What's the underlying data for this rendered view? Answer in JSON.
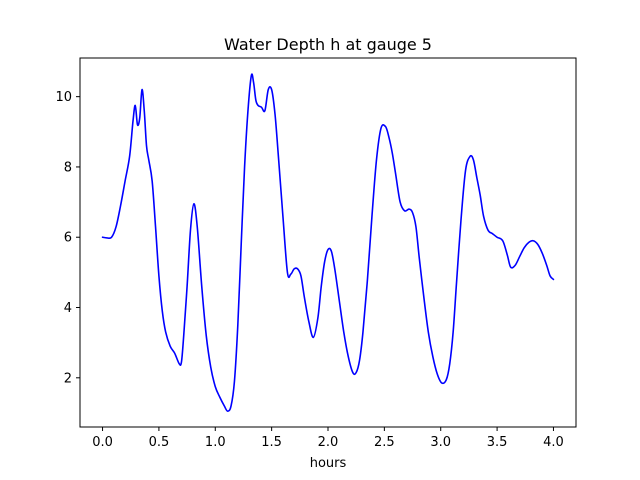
{
  "chart_data": {
    "type": "line",
    "title": "Water Depth h at gauge 5",
    "xlabel": "hours",
    "ylabel": "",
    "xlim": [
      -0.2,
      4.2
    ],
    "ylim": [
      0.6,
      11.1
    ],
    "xticks": [
      0.0,
      0.5,
      1.0,
      1.5,
      2.0,
      2.5,
      3.0,
      3.5,
      4.0
    ],
    "xtick_labels": [
      "0.0",
      "0.5",
      "1.0",
      "1.5",
      "2.0",
      "2.5",
      "3.0",
      "3.5",
      "4.0"
    ],
    "yticks": [
      2,
      4,
      6,
      8,
      10
    ],
    "ytick_labels": [
      "2",
      "4",
      "6",
      "8",
      "10"
    ],
    "grid": false,
    "series": [
      {
        "color": "#0000ff",
        "x": [
          0.0,
          0.04,
          0.08,
          0.12,
          0.16,
          0.2,
          0.24,
          0.27,
          0.29,
          0.31,
          0.33,
          0.35,
          0.37,
          0.39,
          0.41,
          0.44,
          0.47,
          0.5,
          0.53,
          0.56,
          0.6,
          0.64,
          0.68,
          0.7,
          0.72,
          0.75,
          0.78,
          0.81,
          0.84,
          0.88,
          0.92,
          0.96,
          1.0,
          1.04,
          1.08,
          1.11,
          1.14,
          1.17,
          1.2,
          1.23,
          1.26,
          1.29,
          1.32,
          1.34,
          1.36,
          1.38,
          1.41,
          1.44,
          1.47,
          1.5,
          1.53,
          1.56,
          1.6,
          1.64,
          1.67,
          1.7,
          1.73,
          1.76,
          1.79,
          1.83,
          1.87,
          1.91,
          1.94,
          1.97,
          2.0,
          2.03,
          2.06,
          2.1,
          2.14,
          2.18,
          2.22,
          2.25,
          2.28,
          2.31,
          2.35,
          2.39,
          2.43,
          2.47,
          2.51,
          2.54,
          2.57,
          2.6,
          2.64,
          2.68,
          2.72,
          2.75,
          2.78,
          2.81,
          2.85,
          2.89,
          2.93,
          2.97,
          3.01,
          3.05,
          3.08,
          3.11,
          3.14,
          3.18,
          3.22,
          3.26,
          3.29,
          3.32,
          3.35,
          3.38,
          3.42,
          3.46,
          3.5,
          3.55,
          3.59,
          3.62,
          3.66,
          3.7,
          3.74,
          3.78,
          3.82,
          3.86,
          3.9,
          3.94,
          3.97,
          4.0
        ],
        "y": [
          6.0,
          5.98,
          6.0,
          6.3,
          6.9,
          7.6,
          8.3,
          9.3,
          9.75,
          9.2,
          9.4,
          10.2,
          9.6,
          8.6,
          8.2,
          7.6,
          6.3,
          4.9,
          3.9,
          3.3,
          2.9,
          2.7,
          2.4,
          2.45,
          3.2,
          4.6,
          6.2,
          6.95,
          6.3,
          4.6,
          3.2,
          2.3,
          1.75,
          1.45,
          1.2,
          1.05,
          1.2,
          1.9,
          3.5,
          5.8,
          8.0,
          9.6,
          10.6,
          10.4,
          9.9,
          9.75,
          9.7,
          9.6,
          10.2,
          10.2,
          9.5,
          8.3,
          6.6,
          5.0,
          4.95,
          5.1,
          5.1,
          4.9,
          4.3,
          3.6,
          3.15,
          3.7,
          4.6,
          5.3,
          5.65,
          5.6,
          5.1,
          4.2,
          3.3,
          2.6,
          2.15,
          2.15,
          2.5,
          3.3,
          4.8,
          6.6,
          8.2,
          9.1,
          9.15,
          8.85,
          8.4,
          7.8,
          7.0,
          6.75,
          6.8,
          6.7,
          6.3,
          5.4,
          4.3,
          3.3,
          2.6,
          2.1,
          1.85,
          1.95,
          2.4,
          3.3,
          4.7,
          6.5,
          7.9,
          8.3,
          8.2,
          7.7,
          7.2,
          6.6,
          6.2,
          6.1,
          6.0,
          5.9,
          5.5,
          5.15,
          5.2,
          5.45,
          5.7,
          5.85,
          5.9,
          5.8,
          5.55,
          5.2,
          4.9,
          4.8
        ]
      }
    ]
  }
}
